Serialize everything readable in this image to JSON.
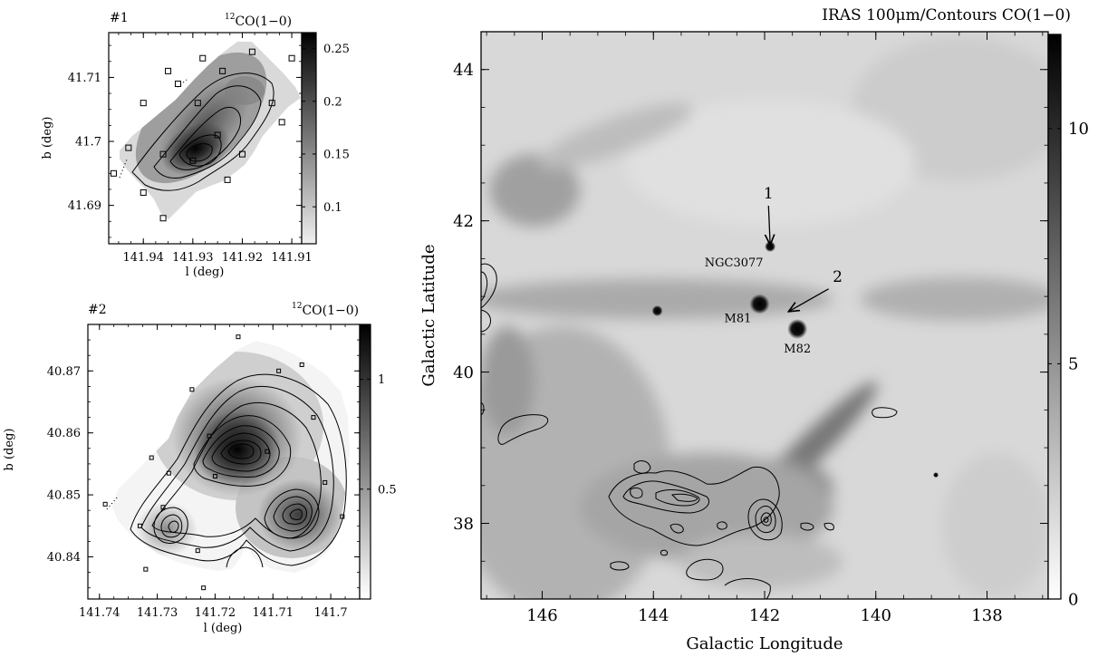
{
  "chart_data": [
    {
      "type": "heatmap",
      "panel_label": "#1",
      "title_sup": "12",
      "title": "CO(1−0)",
      "xlabel": "l (deg)",
      "ylabel": "b (deg)",
      "xlim": [
        141.947,
        141.908
      ],
      "ylim": [
        41.684,
        41.717
      ],
      "x_ticks": [
        "141.94",
        "141.93",
        "141.92",
        "141.91"
      ],
      "x_tick_values": [
        141.94,
        141.93,
        141.92,
        141.91
      ],
      "y_ticks": [
        "41.69",
        "41.7",
        "41.71"
      ],
      "y_tick_values": [
        41.69,
        41.7,
        41.71
      ],
      "colorbar": {
        "ticks": [
          "0.1",
          "0.15",
          "0.2",
          "0.25"
        ],
        "tick_values": [
          0.1,
          0.15,
          0.2,
          0.25
        ],
        "range": [
          0.065,
          0.265
        ]
      },
      "peak": {
        "l": 141.93,
        "b": 41.6985
      },
      "sample_points": [
        {
          "l": 141.918,
          "b": 41.714
        },
        {
          "l": 141.928,
          "b": 41.713
        },
        {
          "l": 141.91,
          "b": 41.713
        },
        {
          "l": 141.935,
          "b": 41.711
        },
        {
          "l": 141.933,
          "b": 41.709
        },
        {
          "l": 141.924,
          "b": 41.711
        },
        {
          "l": 141.94,
          "b": 41.706
        },
        {
          "l": 141.929,
          "b": 41.706
        },
        {
          "l": 141.914,
          "b": 41.706
        },
        {
          "l": 141.912,
          "b": 41.703
        },
        {
          "l": 141.925,
          "b": 41.701
        },
        {
          "l": 141.943,
          "b": 41.699
        },
        {
          "l": 141.936,
          "b": 41.698
        },
        {
          "l": 141.92,
          "b": 41.698
        },
        {
          "l": 141.946,
          "b": 41.695
        },
        {
          "l": 141.94,
          "b": 41.692
        },
        {
          "l": 141.93,
          "b": 41.697
        },
        {
          "l": 141.923,
          "b": 41.694
        },
        {
          "l": 141.936,
          "b": 41.688
        }
      ]
    },
    {
      "type": "heatmap",
      "panel_label": "#2",
      "title_sup": "12",
      "title": "CO(1−0)",
      "xlabel": "l (deg)",
      "ylabel": "b (deg)",
      "xlim": [
        141.742,
        141.695
      ],
      "ylim": [
        40.8332,
        40.8775
      ],
      "x_ticks": [
        "141.74",
        "141.73",
        "141.72",
        "141.71",
        "141.7"
      ],
      "x_tick_values": [
        141.74,
        141.73,
        141.72,
        141.71,
        141.7
      ],
      "y_ticks": [
        "40.84",
        "40.85",
        "40.86",
        "40.87"
      ],
      "y_tick_values": [
        40.84,
        40.85,
        40.86,
        40.87
      ],
      "colorbar": {
        "ticks": [
          "0.5",
          "1"
        ],
        "tick_values": [
          0.5,
          1.0
        ],
        "range": [
          0.0,
          1.25
        ]
      },
      "peaks": [
        {
          "l": 141.716,
          "b": 40.857
        },
        {
          "l": 141.706,
          "b": 40.8465
        },
        {
          "l": 141.729,
          "b": 40.8435
        }
      ],
      "sample_points": [
        {
          "l": 141.716,
          "b": 40.8755
        },
        {
          "l": 141.705,
          "b": 40.871
        },
        {
          "l": 141.709,
          "b": 40.87
        },
        {
          "l": 141.724,
          "b": 40.867
        },
        {
          "l": 141.703,
          "b": 40.8625
        },
        {
          "l": 141.721,
          "b": 40.8595
        },
        {
          "l": 141.711,
          "b": 40.857
        },
        {
          "l": 141.731,
          "b": 40.856
        },
        {
          "l": 141.72,
          "b": 40.853
        },
        {
          "l": 141.728,
          "b": 40.8535
        },
        {
          "l": 141.701,
          "b": 40.852
        },
        {
          "l": 141.729,
          "b": 40.848
        },
        {
          "l": 141.739,
          "b": 40.8485
        },
        {
          "l": 141.698,
          "b": 40.8465
        },
        {
          "l": 141.733,
          "b": 40.845
        },
        {
          "l": 141.723,
          "b": 40.841
        },
        {
          "l": 141.732,
          "b": 40.838
        },
        {
          "l": 141.722,
          "b": 40.835
        }
      ]
    },
    {
      "type": "heatmap",
      "title": "IRAS 100μm/Contours CO(1−0)",
      "xlabel": "Galactic Longitude",
      "ylabel": "Galactic Latitude",
      "xlim": [
        147.1,
        136.9
      ],
      "ylim": [
        37.0,
        44.5
      ],
      "x_ticks": [
        "146",
        "144",
        "142",
        "140",
        "138"
      ],
      "x_tick_values": [
        146,
        144,
        142,
        140,
        138
      ],
      "y_ticks": [
        "38",
        "40",
        "42",
        "44"
      ],
      "y_tick_values": [
        38,
        40,
        42,
        44
      ],
      "colorbar": {
        "ticks": [
          "0",
          "5",
          "10"
        ],
        "tick_values": [
          0,
          5,
          10
        ],
        "range": [
          0,
          12
        ]
      },
      "sources": [
        {
          "name": "NGC3077",
          "l": 141.9,
          "b": 41.66,
          "size": "small"
        },
        {
          "name": "M81",
          "l": 142.09,
          "b": 40.9,
          "size": "medium"
        },
        {
          "name": "M82",
          "l": 141.41,
          "b": 40.57,
          "size": "medium"
        },
        {
          "name": "",
          "l": 143.93,
          "b": 40.81,
          "size": "small"
        },
        {
          "name": "",
          "l": 138.92,
          "b": 38.64,
          "size": "tiny"
        }
      ],
      "arrows": [
        {
          "label": "1",
          "from": {
            "l": 141.93,
            "b": 42.2
          },
          "to": {
            "l": 141.9,
            "b": 41.68
          }
        },
        {
          "label": "2",
          "from": {
            "l": 140.85,
            "b": 41.1
          },
          "to": {
            "l": 141.57,
            "b": 40.8
          }
        }
      ]
    }
  ]
}
